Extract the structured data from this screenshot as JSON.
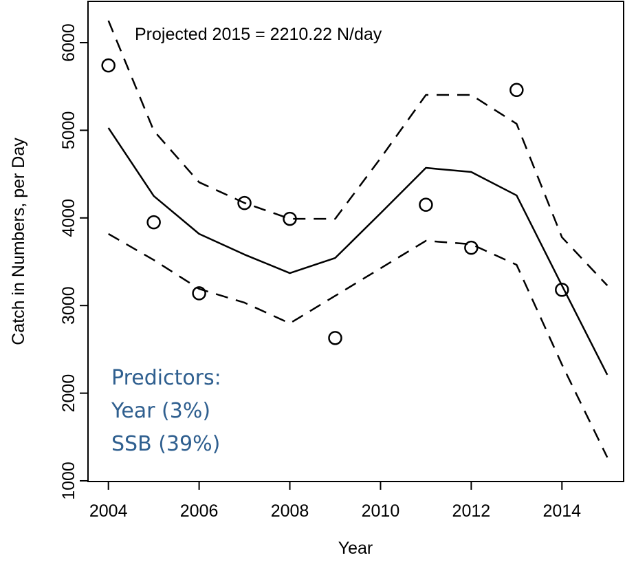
{
  "chart_data": {
    "type": "line",
    "x_label": "Year",
    "y_label": "Catch in Numbers, per Day",
    "annotation": "Projected 2015 =  2210.22  N/day",
    "predictors": [
      "Predictors:",
      "Year (3%)",
      "SSB (39%)"
    ],
    "xlim": [
      2003.55,
      2015.36
    ],
    "ylim": [
      992,
      6471
    ],
    "xticks": [
      2004,
      2006,
      2008,
      2010,
      2012,
      2014
    ],
    "yticks": [
      1000,
      2000,
      3000,
      4000,
      5000,
      6000
    ],
    "grid": false,
    "series": [
      {
        "style": "points",
        "color": "#000000",
        "x": [
          2004,
          2005,
          2006,
          2007,
          2008,
          2009,
          2011,
          2012,
          2013,
          2014
        ],
        "values": [
          5740,
          3950,
          3140,
          4170,
          3990,
          2630,
          4150,
          3660,
          5460,
          3180
        ]
      },
      {
        "style": "solid",
        "color": "#000000",
        "x": [
          2004,
          2005,
          2006,
          2007,
          2008,
          2009,
          2010,
          2011,
          2012,
          2013,
          2014,
          2015
        ],
        "values": [
          5027,
          4250,
          3818,
          3582,
          3370,
          3543,
          4053,
          4571,
          4524,
          4257,
          3229,
          2210
        ]
      },
      {
        "style": "dashed",
        "color": "#000000",
        "x": [
          2004,
          2005,
          2006,
          2007,
          2008,
          2009,
          2010,
          2011,
          2012,
          2013,
          2014,
          2015
        ],
        "values": [
          6251,
          4995,
          4407,
          4171,
          3990,
          3990,
          4681,
          5403,
          5403,
          5074,
          3779,
          3229
        ]
      },
      {
        "style": "dashed",
        "color": "#000000",
        "x": [
          2004,
          2005,
          2006,
          2007,
          2008,
          2009,
          2010,
          2011,
          2012,
          2013,
          2014,
          2015
        ],
        "values": [
          3818,
          3520,
          3190,
          3033,
          2797,
          3111,
          3425,
          3739,
          3700,
          3465,
          2327,
          1267
        ]
      }
    ]
  }
}
